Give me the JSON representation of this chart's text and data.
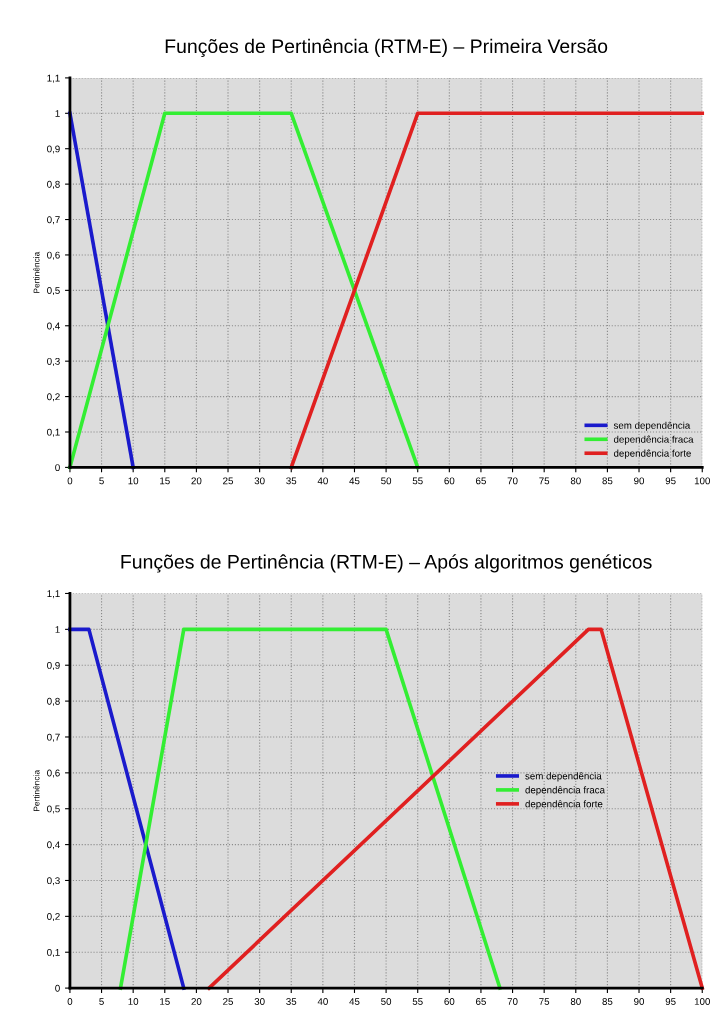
{
  "chart_data": [
    {
      "type": "line",
      "title": "Funções de Pertinência (RTM-E) – Primeira Versão",
      "ylabel": "Pertinência",
      "xlim": [
        0,
        100
      ],
      "ylim": [
        0,
        1.1
      ],
      "xticks": [
        0,
        5,
        10,
        15,
        20,
        25,
        30,
        35,
        40,
        45,
        50,
        55,
        60,
        65,
        70,
        75,
        80,
        85,
        90,
        95,
        100
      ],
      "yticks": [
        0,
        {
          "value": 0.1,
          "label": "0,1"
        },
        {
          "value": 0.2,
          "label": "0,2"
        },
        {
          "value": 0.3,
          "label": "0,3"
        },
        {
          "value": 0.4,
          "label": "0,4"
        },
        {
          "value": 0.5,
          "label": "0,5"
        },
        {
          "value": 0.6,
          "label": "0,6"
        },
        {
          "value": 0.7,
          "label": "0,7"
        },
        {
          "value": 0.8,
          "label": "0,8"
        },
        {
          "value": 0.9,
          "label": "0,9"
        },
        1,
        {
          "value": 1.1,
          "label": "1,1"
        }
      ],
      "grid": true,
      "legend": "bottom right",
      "marker": "none",
      "line_style": "solid",
      "series": [
        {
          "name": "sem dependência",
          "color": "#1a1acc",
          "x": [
            0,
            10
          ],
          "values": [
            1,
            0
          ]
        },
        {
          "name": "dependência fraca",
          "color": "#33ee33",
          "x": [
            0,
            15,
            35,
            55
          ],
          "values": [
            0,
            1,
            1,
            0
          ]
        },
        {
          "name": "dependência forte",
          "color": "#e02020",
          "x": [
            35,
            55,
            100
          ],
          "values": [
            0,
            1,
            1
          ]
        }
      ]
    },
    {
      "type": "line",
      "title": "Funções de Pertinência (RTM-E) – Após algoritmos genéticos",
      "ylabel": "Pertinência",
      "xlim": [
        0,
        100
      ],
      "ylim": [
        0,
        1.1
      ],
      "xticks": [
        0,
        5,
        10,
        15,
        20,
        25,
        30,
        35,
        40,
        45,
        50,
        55,
        60,
        65,
        70,
        75,
        80,
        85,
        90,
        95,
        100
      ],
      "yticks": [
        0,
        {
          "value": 0.1,
          "label": "0,1"
        },
        {
          "value": 0.2,
          "label": "0,2"
        },
        {
          "value": 0.3,
          "label": "0,3"
        },
        {
          "value": 0.4,
          "label": "0,4"
        },
        {
          "value": 0.5,
          "label": "0,5"
        },
        {
          "value": 0.6,
          "label": "0,6"
        },
        {
          "value": 0.7,
          "label": "0,7"
        },
        {
          "value": 0.8,
          "label": "0,8"
        },
        {
          "value": 0.9,
          "label": "0,9"
        },
        1,
        {
          "value": 1.1,
          "label": "1,1"
        }
      ],
      "grid": true,
      "legend": "center right",
      "marker": "none",
      "line_style": "solid",
      "series": [
        {
          "name": "sem dependência",
          "color": "#1a1acc",
          "x": [
            0,
            3,
            18
          ],
          "values": [
            1,
            1,
            0
          ]
        },
        {
          "name": "dependência fraca",
          "color": "#33ee33",
          "x": [
            8,
            18,
            50,
            68
          ],
          "values": [
            0,
            1,
            1,
            0
          ]
        },
        {
          "name": "dependência forte",
          "color": "#e02020",
          "x": [
            22,
            82,
            84,
            100
          ],
          "values": [
            0,
            1,
            1,
            0
          ]
        }
      ]
    }
  ]
}
